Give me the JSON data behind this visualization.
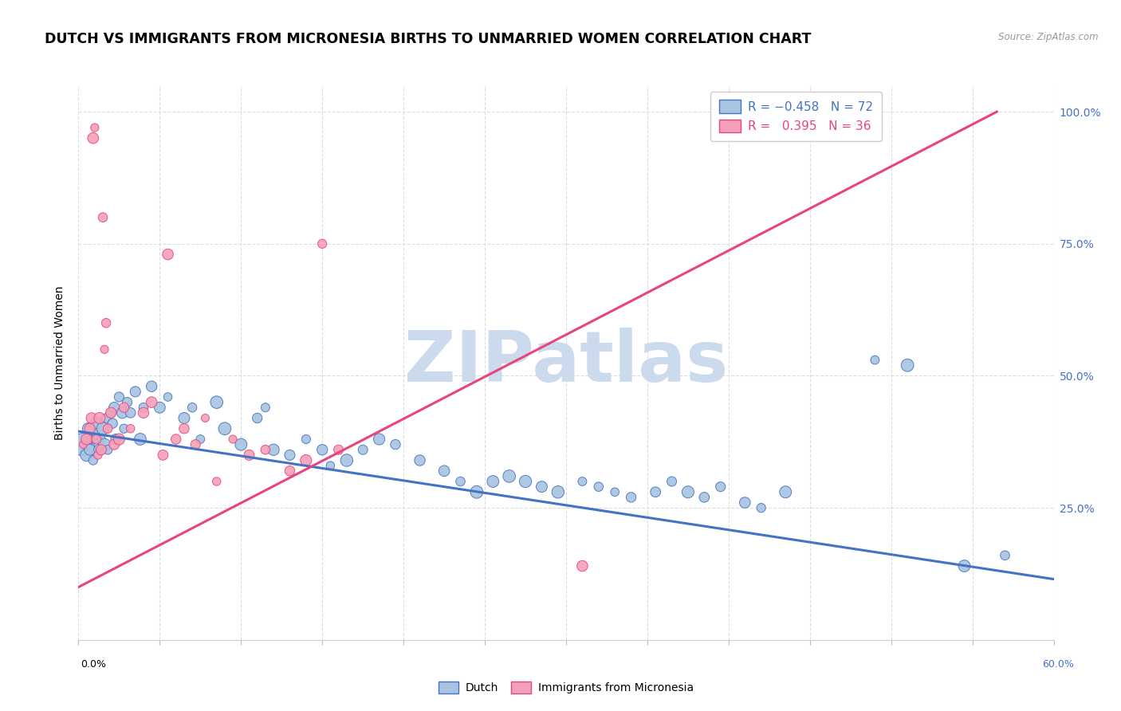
{
  "title": "DUTCH VS IMMIGRANTS FROM MICRONESIA BIRTHS TO UNMARRIED WOMEN CORRELATION CHART",
  "source": "Source: ZipAtlas.com",
  "ylabel": "Births to Unmarried Women",
  "xlim": [
    0.0,
    0.6
  ],
  "ylim": [
    0.0,
    1.05
  ],
  "yticks": [
    0.0,
    0.25,
    0.5,
    0.75,
    1.0
  ],
  "ytick_labels": [
    "",
    "25.0%",
    "50.0%",
    "75.0%",
    "100.0%"
  ],
  "blue_color": "#a8c4e0",
  "pink_color": "#f4a0b8",
  "trend_blue": "#4472c4",
  "trend_pink": "#e8457a",
  "watermark_color": "#ccdaee",
  "title_fontsize": 12.5,
  "axis_label_fontsize": 10,
  "tick_fontsize": 9,
  "blue_scatter_x": [
    0.003,
    0.005,
    0.006,
    0.007,
    0.008,
    0.009,
    0.01,
    0.011,
    0.012,
    0.013,
    0.014,
    0.015,
    0.016,
    0.017,
    0.018,
    0.02,
    0.021,
    0.022,
    0.023,
    0.025,
    0.027,
    0.028,
    0.03,
    0.032,
    0.035,
    0.038,
    0.04,
    0.045,
    0.05,
    0.055,
    0.065,
    0.07,
    0.075,
    0.085,
    0.09,
    0.1,
    0.11,
    0.115,
    0.12,
    0.13,
    0.14,
    0.15,
    0.155,
    0.165,
    0.175,
    0.185,
    0.195,
    0.21,
    0.225,
    0.235,
    0.245,
    0.255,
    0.265,
    0.275,
    0.285,
    0.295,
    0.31,
    0.32,
    0.33,
    0.34,
    0.355,
    0.365,
    0.375,
    0.385,
    0.395,
    0.41,
    0.42,
    0.435,
    0.49,
    0.51,
    0.545,
    0.57
  ],
  "blue_scatter_y": [
    0.37,
    0.35,
    0.4,
    0.36,
    0.38,
    0.34,
    0.38,
    0.41,
    0.39,
    0.36,
    0.38,
    0.4,
    0.37,
    0.42,
    0.36,
    0.43,
    0.41,
    0.44,
    0.38,
    0.46,
    0.43,
    0.4,
    0.45,
    0.43,
    0.47,
    0.38,
    0.44,
    0.48,
    0.44,
    0.46,
    0.42,
    0.44,
    0.38,
    0.45,
    0.4,
    0.37,
    0.42,
    0.44,
    0.36,
    0.35,
    0.38,
    0.36,
    0.33,
    0.34,
    0.36,
    0.38,
    0.37,
    0.34,
    0.32,
    0.3,
    0.28,
    0.3,
    0.31,
    0.3,
    0.29,
    0.28,
    0.3,
    0.29,
    0.28,
    0.27,
    0.28,
    0.3,
    0.28,
    0.27,
    0.29,
    0.26,
    0.25,
    0.28,
    0.53,
    0.52,
    0.14,
    0.16
  ],
  "pink_scatter_x": [
    0.003,
    0.005,
    0.007,
    0.008,
    0.009,
    0.01,
    0.011,
    0.012,
    0.013,
    0.014,
    0.015,
    0.016,
    0.017,
    0.018,
    0.02,
    0.022,
    0.025,
    0.028,
    0.032,
    0.04,
    0.045,
    0.052,
    0.055,
    0.06,
    0.065,
    0.072,
    0.078,
    0.085,
    0.095,
    0.105,
    0.115,
    0.13,
    0.14,
    0.15,
    0.16,
    0.31
  ],
  "pink_scatter_y": [
    0.37,
    0.38,
    0.4,
    0.42,
    0.95,
    0.97,
    0.38,
    0.35,
    0.42,
    0.36,
    0.8,
    0.55,
    0.6,
    0.4,
    0.43,
    0.37,
    0.38,
    0.44,
    0.4,
    0.43,
    0.45,
    0.35,
    0.73,
    0.38,
    0.4,
    0.37,
    0.42,
    0.3,
    0.38,
    0.35,
    0.36,
    0.32,
    0.34,
    0.75,
    0.36,
    0.14
  ],
  "blue_trend_x": [
    0.0,
    0.6
  ],
  "blue_trend_y": [
    0.395,
    0.115
  ],
  "pink_trend_x": [
    0.0,
    0.565
  ],
  "pink_trend_y": [
    0.1,
    1.0
  ]
}
